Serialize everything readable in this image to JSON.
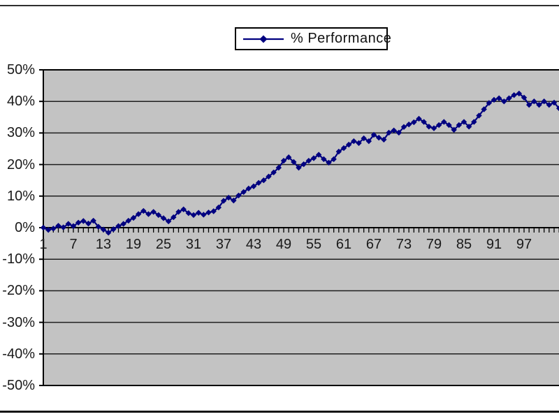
{
  "legend": {
    "label": "% Performance"
  },
  "colors": {
    "series": "#000080",
    "plot_bg": "#c3c3c3",
    "gridline": "#1f1f1f",
    "axis": "#000000",
    "chart_border": "#2e2e2e",
    "text": "#1a1a1a"
  },
  "chart_data": {
    "type": "line",
    "title": "",
    "xlabel": "",
    "ylabel": "",
    "ylim": [
      -50,
      50
    ],
    "y_gridline_step": 10,
    "grid": true,
    "legend_position": "top-center",
    "plot_area_bg": "#c3c3c3",
    "y_tick_labels": [
      "50%",
      "40%",
      "30%",
      "20%",
      "10%",
      "0%",
      "-10%",
      "-20%",
      "-30%",
      "-40%",
      "-50%"
    ],
    "x_tick_labels": [
      "1",
      "7",
      "13",
      "19",
      "25",
      "31",
      "37",
      "43",
      "49",
      "55",
      "61",
      "67",
      "73",
      "79",
      "85",
      "91",
      "97"
    ],
    "x_label_interval": 6,
    "x_start": 1,
    "series": [
      {
        "name": "% Performance",
        "color": "#000080",
        "marker": "diamond",
        "values": [
          0,
          -0.7,
          -0.3,
          0.6,
          0.1,
          1.2,
          0.5,
          1.6,
          2.1,
          1.3,
          2.2,
          0.3,
          -0.6,
          -1.6,
          -0.5,
          0.5,
          1.2,
          2.2,
          3.1,
          4.3,
          5.3,
          4.3,
          5,
          4,
          3,
          2,
          3.3,
          5,
          5.8,
          4.6,
          4,
          4.7,
          4.1,
          4.8,
          5.2,
          6.4,
          8.5,
          9.5,
          8.6,
          10.2,
          11.3,
          12.4,
          13.1,
          14.2,
          15,
          16.2,
          17.5,
          19,
          21.2,
          22.3,
          20.8,
          19,
          20.1,
          21.2,
          22,
          23.1,
          21.7,
          20.6,
          21.7,
          24.1,
          25.2,
          26.3,
          27.4,
          26.8,
          28.3,
          27.4,
          29.4,
          28.5,
          27.9,
          30.1,
          30.8,
          30.1,
          31.9,
          32.7,
          33.4,
          34.5,
          33.5,
          32,
          31.5,
          32.5,
          33.5,
          32.5,
          31,
          32.5,
          33.5,
          32,
          33.5,
          35.5,
          37.5,
          39.5,
          40.5,
          41,
          40,
          41,
          42,
          42.5,
          41.2,
          38.9,
          40,
          38.9,
          40,
          38.9,
          39.6,
          37.8
        ]
      }
    ]
  }
}
